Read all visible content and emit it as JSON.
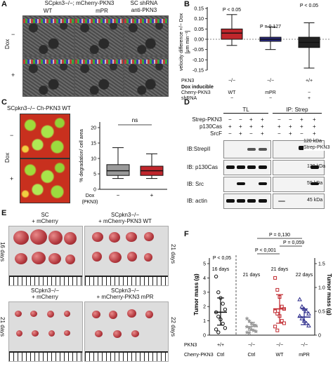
{
  "panelA": {
    "label": "A",
    "header": "SCpkn3−/−; mCherry-PKN3",
    "col_wt": "WT",
    "col_mpr": "mPR",
    "col_sc_line1": "SC shRNA",
    "col_sc_line2": "anti-PKN3",
    "dox": "Dox",
    "minus": "−",
    "plus": "+"
  },
  "panelB": {
    "label": "B",
    "ylabel_line1": "velocity difference +/− Dox",
    "ylabel_line2": "[μm min⁻¹]",
    "yticks": [
      "0.15",
      "0.10",
      "0.05",
      "0.00",
      "-0.05",
      "-0.10",
      "-0.15"
    ],
    "pvalues": [
      "P < 0.05",
      "P = 0.127",
      "P < 0.05"
    ],
    "row_pkn3": "PKN3",
    "row_dox1": "Dox inducible",
    "row_dox2": "Cherry-PKN3",
    "row_shrna": "shRNA",
    "pkn3_vals": [
      "−/−",
      "−/−",
      "+/+"
    ],
    "cherry_vals": [
      "WT",
      "mPR",
      "−"
    ],
    "shrna_vals": [
      "−",
      "−",
      "+"
    ]
  },
  "panelC": {
    "label": "C",
    "title": "SCpkn3−/− Ch-PKN3 WT",
    "dox": "Dox",
    "minus": "−",
    "plus": "+",
    "ylabel": "% degradation/ cell area",
    "ns": "ns",
    "yticks": [
      "20",
      "15",
      "10",
      "5",
      "0"
    ],
    "x_dox": "Dox",
    "x_pkn3": "(PKN3)",
    "x_vals": [
      "−",
      "+"
    ]
  },
  "panelD": {
    "label": "D",
    "tl": "TL",
    "ip": "IP: Strep",
    "rows": [
      "Strep-PKN3",
      "p130Cas",
      "SrcF"
    ],
    "signs": [
      [
        "−",
        "−",
        "+",
        "+",
        "−",
        "−",
        "+",
        "+"
      ],
      [
        "+",
        "+",
        "+",
        "+",
        "+",
        "+",
        "+",
        "+"
      ],
      [
        "−",
        "+",
        "−",
        "+",
        "−",
        "+",
        "−",
        "+"
      ]
    ],
    "blots": [
      "IB:StrepII",
      "IB: p130Cas",
      "IB: Src",
      "IB: actin"
    ],
    "kda": [
      "120 kDa",
      "130 kDa",
      "59 kDa",
      "45 kDa"
    ],
    "strep_label": "Strep-PKN3"
  },
  "panelE": {
    "label": "E",
    "b1_line1": "SC",
    "b1_line2": "+ mCherry",
    "b2_line1": "SCpkn3−/−",
    "b2_line2": "+ mCherry-PKN3 WT",
    "b3_line1": "SCpkn3−/−",
    "b3_line2": "+ mCherry",
    "b4_line1": "SCpkn3−/−",
    "b4_line2": "+ mCherry-PKN3 mPR",
    "days_16": "16 days",
    "days_21a": "21 days",
    "days_21b": "21 days",
    "days_22": "22 days"
  },
  "panelF": {
    "label": "F",
    "ylabel_left": "Tumor mass (g)",
    "ylabel_right": "Tumor mass (g)",
    "yticks_left": [
      "5",
      "4",
      "3",
      "2",
      "1",
      "0"
    ],
    "yticks_right": [
      "1.5",
      "1.0",
      "0.5",
      "0"
    ],
    "p_top": "P = 0,130",
    "p_mid": "P = 0,059",
    "p_001": "P < 0,001",
    "p_005": "P < 0,05",
    "days_16": "16 days",
    "days_21a": "21 days",
    "days_21b": "21 days",
    "days_22": "22 days",
    "row_pkn3": "PKN3",
    "row_cherry": "Cherry-PKN3",
    "pkn3_vals": [
      "+/+",
      "−/−",
      "−/−",
      "−/−"
    ],
    "cherry_vals": [
      "Ctrl",
      "Ctrl",
      "WT",
      "mPR"
    ]
  },
  "chart_data": [
    {
      "type": "box",
      "panel": "B",
      "categories": [
        "WT",
        "mPR",
        "shRNA"
      ],
      "colors": [
        "#c0262c",
        "#2b2a8a",
        "#222222"
      ],
      "ylim": [
        -0.15,
        0.15
      ],
      "boxes": [
        {
          "whisker_low": -0.03,
          "q1": 0.0,
          "median": 0.03,
          "q3": 0.05,
          "whisker_high": 0.12
        },
        {
          "whisker_low": -0.05,
          "q1": -0.01,
          "median": 0.0,
          "q3": 0.01,
          "whisker_high": 0.06
        },
        {
          "whisker_low": -0.14,
          "q1": -0.04,
          "median": -0.015,
          "q3": 0.01,
          "whisker_high": 0.08
        }
      ]
    },
    {
      "type": "box",
      "panel": "C",
      "categories": [
        "−",
        "+"
      ],
      "colors": [
        "#999999",
        "#c0262c"
      ],
      "ylim": [
        0,
        20
      ],
      "boxes": [
        {
          "whisker_low": 3.5,
          "q1": 4.5,
          "median": 6,
          "q3": 8,
          "whisker_high": 13.5
        },
        {
          "whisker_low": 3.5,
          "q1": 4.5,
          "median": 6,
          "q3": 7.5,
          "whisker_high": 11.5
        }
      ]
    },
    {
      "type": "scatter",
      "panel": "F",
      "groups": [
        {
          "name": "+/+ Ctrl",
          "axis": "left",
          "color": "#111111",
          "marker": "circle",
          "values": [
            4.1,
            3.0,
            2.6,
            2.2,
            1.8,
            1.6,
            1.3,
            1.1,
            0.8,
            0.5,
            0.4,
            0.2
          ],
          "mean": 1.6,
          "sd_low": 0.7,
          "sd_high": 2.6
        },
        {
          "name": "−/− Ctrl",
          "axis": "right",
          "color": "#9a9a9a",
          "marker": "star",
          "values": [
            0.35,
            0.3,
            0.25,
            0.22,
            0.2,
            0.18,
            0.15,
            0.12,
            0.1,
            0.08,
            0.06,
            0.05
          ],
          "mean": 0.18,
          "sd_low": 0.1,
          "sd_high": 0.27
        },
        {
          "name": "−/− WT",
          "axis": "right",
          "color": "#c0262c",
          "marker": "square",
          "values": [
            1.2,
            0.95,
            0.8,
            0.6,
            0.55,
            0.5,
            0.45,
            0.4,
            0.3,
            0.25,
            0.18,
            0.1
          ],
          "mean": 0.55,
          "sd_low": 0.25,
          "sd_high": 0.85
        },
        {
          "name": "−/− mPR",
          "axis": "right",
          "color": "#2b2a8a",
          "marker": "triangle",
          "values": [
            0.75,
            0.6,
            0.55,
            0.5,
            0.45,
            0.4,
            0.35,
            0.3,
            0.25,
            0.2
          ],
          "mean": 0.38,
          "sd_low": 0.22,
          "sd_high": 0.55
        }
      ],
      "ylim_left": [
        0,
        5
      ],
      "ylim_right": [
        0,
        1.5
      ]
    }
  ]
}
